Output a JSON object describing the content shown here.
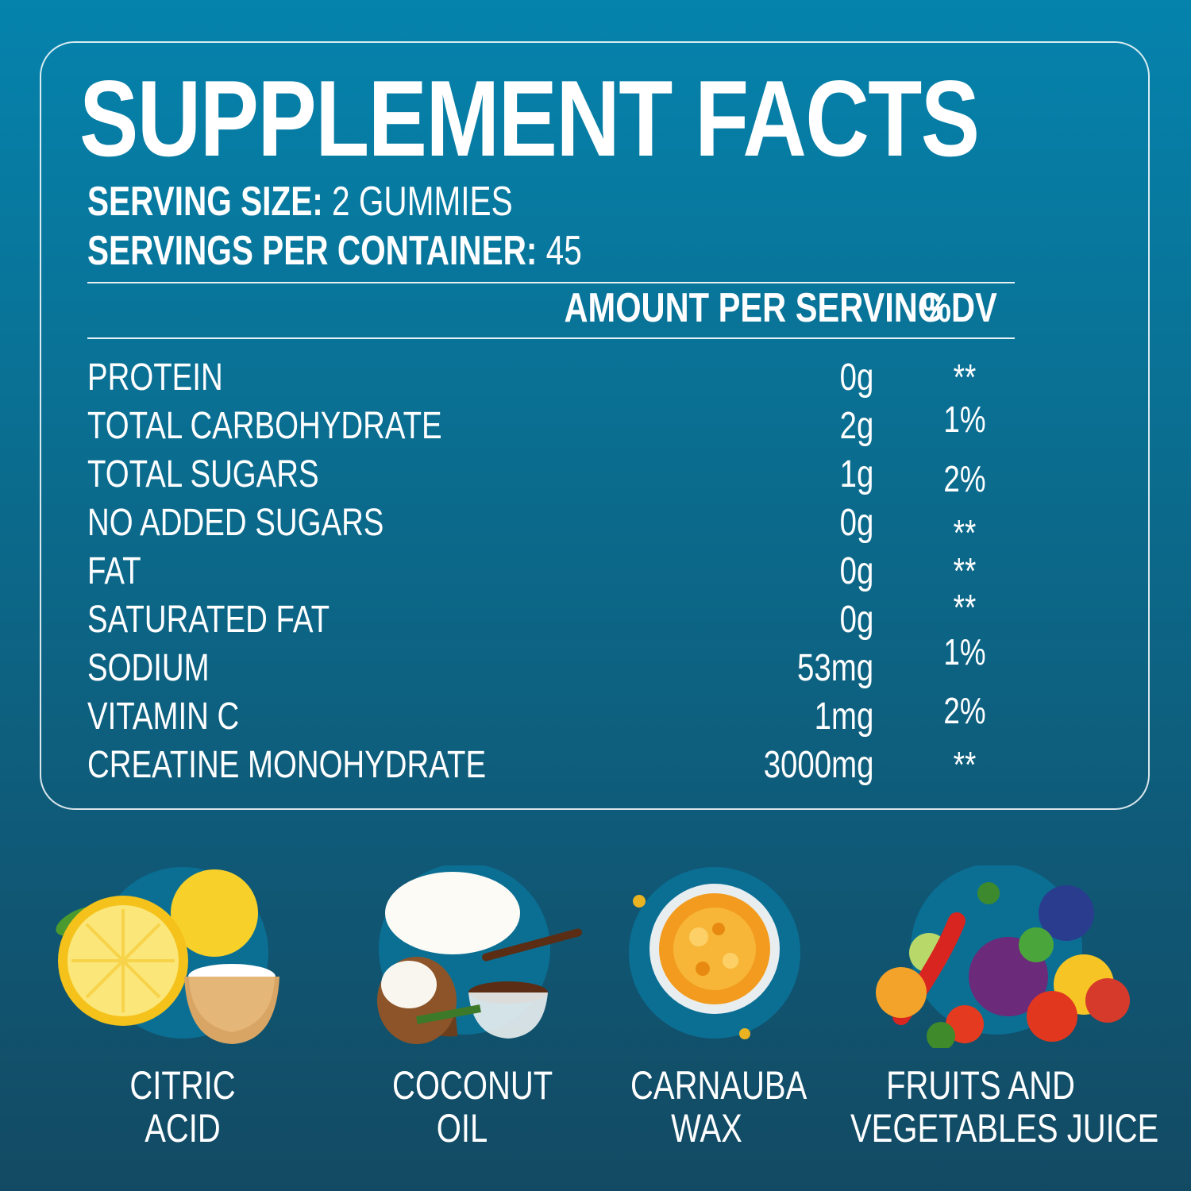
{
  "title": "SUPPLEMENT FACTS",
  "serving_size": {
    "label": "SERVING SIZE:",
    "value": " 2 GUMMIES"
  },
  "servings_per_container": {
    "label": "SERVINGS PER CONTAINER:",
    "value": " 45"
  },
  "table": {
    "headers": {
      "amount": "AMOUNT PER SERVING",
      "dv": "%DV"
    },
    "rows": [
      {
        "name": "PROTEIN",
        "amount": "0g",
        "dv": "**"
      },
      {
        "name": "TOTAL CARBOHYDRATE",
        "amount": "2g",
        "dv": "1%"
      },
      {
        "name": "TOTAL SUGARS",
        "amount": "1g",
        "dv": "2%"
      },
      {
        "name": "NO ADDED SUGARS",
        "amount": "0g",
        "dv": "**"
      },
      {
        "name": "FAT",
        "amount": "0g",
        "dv": "**"
      },
      {
        "name": "SATURATED FAT",
        "amount": "0g",
        "dv": "**"
      },
      {
        "name": "SODIUM",
        "amount": "53mg",
        "dv": "1%"
      },
      {
        "name": "VITAMIN C",
        "amount": "1mg",
        "dv": "2%"
      },
      {
        "name": "CREATINE MONOHYDRATE",
        "amount": "3000mg",
        "dv": "**"
      }
    ]
  },
  "ingredients": [
    {
      "line1": "CITRIC",
      "line2": "ACID",
      "icon": "lemon-powder-icon"
    },
    {
      "line1": "COCONUT",
      "line2": "OIL",
      "icon": "coconut-icon"
    },
    {
      "line1": "CARNAUBA",
      "line2": "WAX",
      "icon": "wax-bowl-icon"
    },
    {
      "line1": "FRUITS AND",
      "line2": "VEGETABLES JUICE",
      "icon": "fruits-vegetables-icon"
    }
  ]
}
